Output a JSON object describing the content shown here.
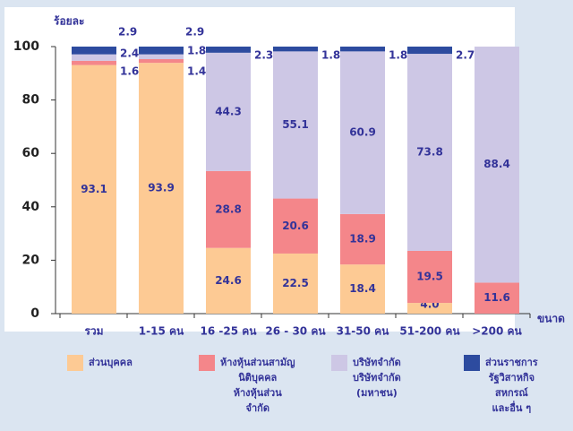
{
  "chart_data": {
    "type": "stacked_bar",
    "y_label": "ร้อยละ",
    "x_label": "ขนาด",
    "categories": [
      "รวม",
      "1-15 คน",
      "16 -25 คน",
      "26 - 30 คน",
      "31-50 คน",
      "51-200 คน",
      ">200 คน"
    ],
    "series": [
      {
        "name": "ส่วนบุคคล",
        "color": "#fdca94",
        "values": [
          93.1,
          93.9,
          24.6,
          22.5,
          18.4,
          4.0,
          null
        ],
        "value_labels": [
          "93.1",
          "93.9",
          "24.6",
          "22.5",
          "18.4",
          "4.0",
          null
        ]
      },
      {
        "name": "ห้างหุ้นส่วนสามัญ\nนิติบุคคล\nห้างหุ้นส่วน\nจำกัด",
        "color": "#f4868a",
        "values": [
          1.6,
          1.4,
          28.8,
          20.6,
          18.9,
          19.5,
          11.6
        ]
      },
      {
        "name": "บริษัทจำกัด\nบริษัทจำกัด\n(มหาชน)",
        "color": "#cdc7e5",
        "values": [
          2.4,
          1.8,
          44.3,
          55.1,
          60.9,
          73.8,
          88.4
        ]
      },
      {
        "name": "ส่วนราชการ\nรัฐวิสาหกิจ\nสหกรณ์\nและอื่น ๆ",
        "color": "#2d4b9f",
        "values": [
          2.9,
          2.9,
          2.3,
          1.8,
          1.8,
          2.7,
          null
        ]
      }
    ],
    "ylim": [
      0,
      100
    ],
    "yticks": [
      0,
      20,
      40,
      60,
      80,
      100
    ]
  }
}
